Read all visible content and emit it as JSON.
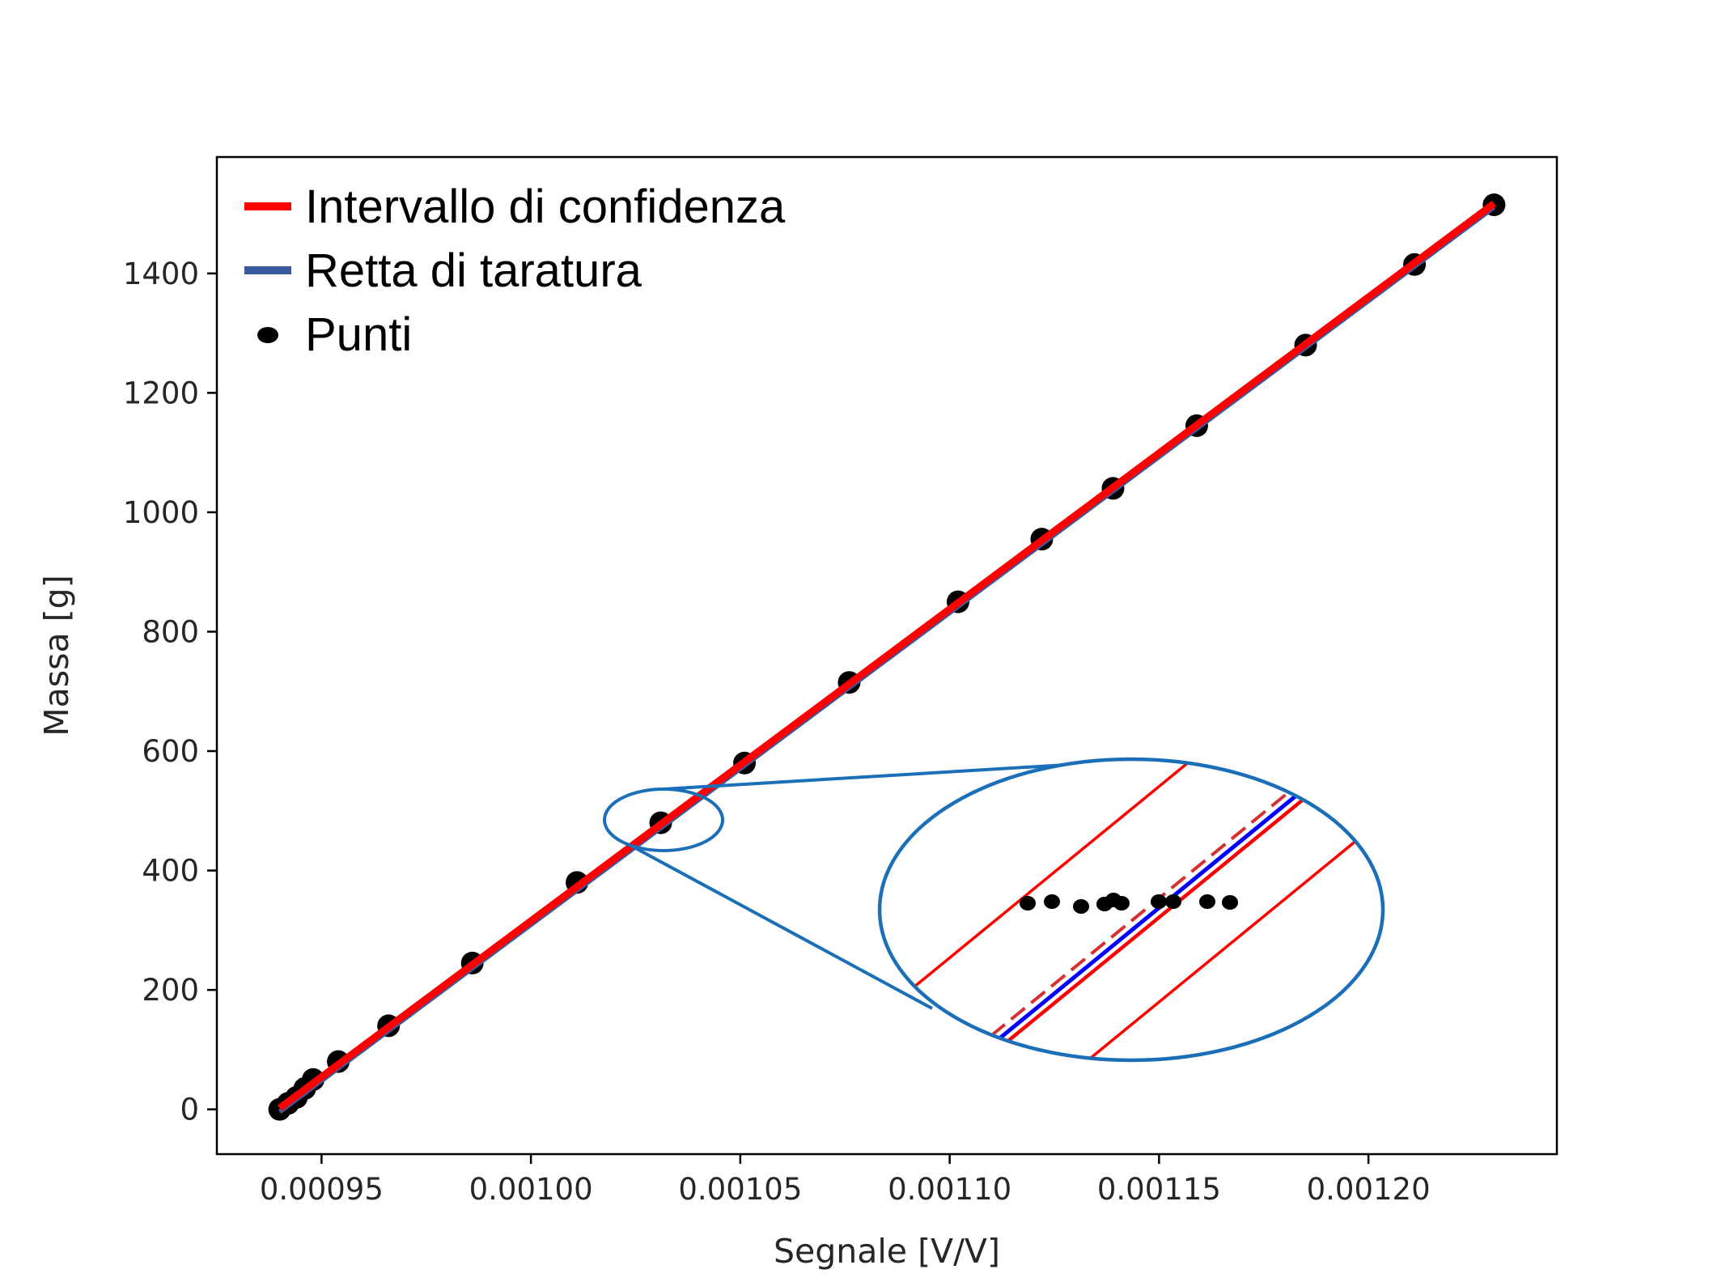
{
  "chart_data": {
    "type": "scatter",
    "xlabel": "Segnale [V/V]",
    "ylabel": "Massa [g]",
    "xlim": [
      0.000925,
      0.001245
    ],
    "ylim": [
      -75,
      1595
    ],
    "xticks": [
      0.00095,
      0.001,
      0.00105,
      0.0011,
      0.00115,
      0.0012
    ],
    "xtick_labels": [
      "0.00095",
      "0.00100",
      "0.00105",
      "0.00110",
      "0.00115",
      "0.00120"
    ],
    "yticks": [
      0,
      200,
      400,
      600,
      800,
      1000,
      1200,
      1400
    ],
    "ytick_labels": [
      "0",
      "200",
      "400",
      "600",
      "800",
      "1000",
      "1200",
      "1400"
    ],
    "grid": false,
    "legend": {
      "position": "top-left",
      "entries": [
        {
          "label": "Intervallo di confidenza",
          "type": "line",
          "color": "#ff0000"
        },
        {
          "label": "Retta di taratura",
          "type": "line",
          "color": "#3a5aa0"
        },
        {
          "label": "Punti",
          "type": "marker",
          "color": "#000000"
        }
      ]
    },
    "series": [
      {
        "name": "Punti",
        "type": "scatter",
        "color": "#000000",
        "x": [
          0.00094,
          0.000942,
          0.000944,
          0.000946,
          0.000948,
          0.000954,
          0.000966,
          0.000986,
          0.001011,
          0.001031,
          0.001051,
          0.001076,
          0.001102,
          0.001122,
          0.001139,
          0.001159,
          0.001185,
          0.001211,
          0.00123
        ],
        "y": [
          0,
          10,
          20,
          35,
          50,
          80,
          140,
          245,
          380,
          480,
          580,
          715,
          850,
          955,
          1040,
          1145,
          1280,
          1415,
          1515
        ]
      },
      {
        "name": "Retta di taratura",
        "type": "line",
        "color": "#3a5aa0",
        "x": [
          0.00094,
          0.00123
        ],
        "y": [
          0,
          1515
        ]
      },
      {
        "name": "Intervallo di confidenza",
        "type": "line",
        "color": "#ff0000",
        "x": [
          0.00094,
          0.00123
        ],
        "y": [
          2,
          1517
        ]
      }
    ],
    "inset_colors": {
      "outline": "#1a6fb8",
      "band": "#ff0000",
      "fit": "#0000ff",
      "points": "#000000"
    }
  }
}
